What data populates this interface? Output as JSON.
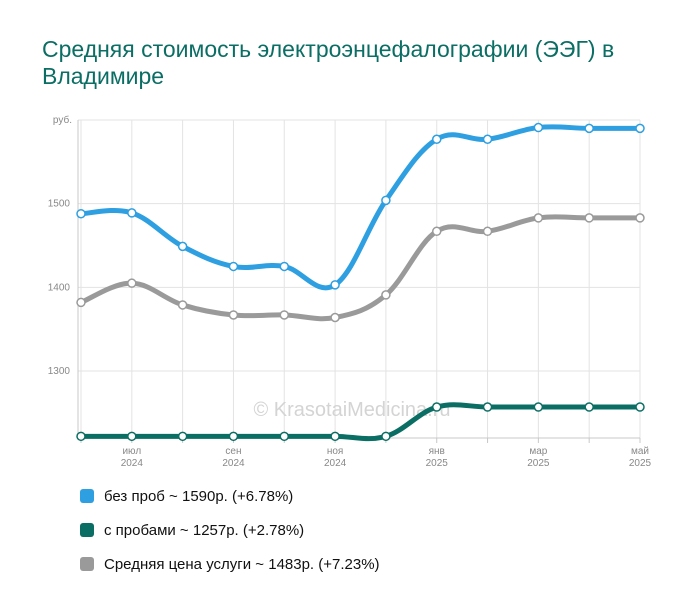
{
  "title": "Средняя стоимость электроэнцефалографии (ЭЭГ) в Владимире",
  "watermark": "© KrasotaiMedicina.ru",
  "chart_data": {
    "type": "line",
    "y_unit": "руб.",
    "y_ticks": [
      1300,
      1400,
      1500
    ],
    "ylim": [
      1220,
      1600
    ],
    "grid": true,
    "legend_position": "bottom",
    "x_tick_labels": [
      {
        "index": 1,
        "month": "июл",
        "year": "2024"
      },
      {
        "index": 3,
        "month": "сен",
        "year": "2024"
      },
      {
        "index": 5,
        "month": "ноя",
        "year": "2024"
      },
      {
        "index": 7,
        "month": "янв",
        "year": "2025"
      },
      {
        "index": 9,
        "month": "мар",
        "year": "2025"
      },
      {
        "index": 11,
        "month": "май",
        "year": "2025"
      }
    ],
    "series": [
      {
        "name": "без проб",
        "color": "#2e9fe0",
        "values": [
          1488,
          1489,
          1449,
          1425,
          1425,
          1403,
          1504,
          1577,
          1577,
          1591,
          1590,
          1590
        ]
      },
      {
        "name": "с пробами",
        "color": "#0b6e64",
        "values": [
          1222,
          1222,
          1222,
          1222,
          1222,
          1222,
          1222,
          1257,
          1257,
          1257,
          1257,
          1257
        ]
      },
      {
        "name": "Средняя цена услуги",
        "color": "#9a9a9a",
        "values": [
          1382,
          1405,
          1379,
          1367,
          1367,
          1364,
          1391,
          1467,
          1467,
          1483,
          1483,
          1483
        ]
      }
    ]
  },
  "legend": [
    {
      "text": "без проб ~ 1590р. (+6.78%)",
      "color": "#2e9fe0"
    },
    {
      "text": "с пробами ~ 1257р. (+2.78%)",
      "color": "#0b6e64"
    },
    {
      "text": "Средняя цена услуги ~ 1483р. (+7.23%)",
      "color": "#9a9a9a"
    }
  ]
}
